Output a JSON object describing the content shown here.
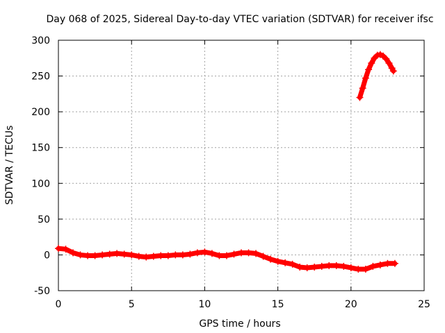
{
  "chart_data": {
    "type": "scatter",
    "title": "Day 068 of 2025, Sidereal Day-to-day VTEC variation (SDTVAR) for receiver ifsc",
    "xlabel": "GPS time / hours",
    "ylabel": "SDTVAR / TECUs",
    "xlim": [
      0,
      25
    ],
    "ylim": [
      -50,
      300
    ],
    "xticks": [
      0,
      5,
      10,
      15,
      20,
      25
    ],
    "yticks": [
      -50,
      0,
      50,
      100,
      150,
      200,
      250,
      300
    ],
    "grid": true,
    "legend": "none",
    "marker": "plus",
    "color": "#ff0000",
    "series": [
      {
        "x": [
          0.0,
          0.5,
          1.0,
          1.5,
          2.0,
          2.5,
          3.0,
          3.5,
          4.0,
          4.5,
          5.0,
          5.5,
          6.0,
          6.5,
          7.0,
          7.5,
          8.0,
          8.5,
          9.0,
          9.5,
          10.0,
          10.5,
          11.0,
          11.5,
          12.0,
          12.5,
          13.0,
          13.5,
          14.0,
          14.5,
          15.0,
          15.5,
          16.0,
          16.5,
          17.0,
          17.5,
          18.0,
          18.5,
          19.0,
          19.5,
          20.0,
          20.5,
          21.0,
          21.5,
          22.0,
          22.5,
          23.0
        ],
        "y": [
          9,
          8,
          3,
          0,
          -1,
          -1,
          0,
          1,
          2,
          1,
          0,
          -2,
          -3,
          -2,
          -1,
          -1,
          0,
          0,
          1,
          3,
          4,
          2,
          -1,
          -1,
          1,
          3,
          3,
          2,
          -2,
          -6,
          -9,
          -11,
          -13,
          -17,
          -18,
          -17,
          -16,
          -15,
          -15,
          -16,
          -18,
          -20,
          -20,
          -16,
          -14,
          -12,
          -12
        ]
      },
      {
        "x": [
          20.6,
          20.8,
          21.0,
          21.2,
          21.4,
          21.6,
          21.8,
          22.0,
          22.2,
          22.4,
          22.6,
          22.8,
          22.9
        ],
        "y": [
          220,
          233,
          247,
          259,
          268,
          275,
          279,
          280,
          278,
          274,
          268,
          261,
          257
        ]
      }
    ]
  }
}
